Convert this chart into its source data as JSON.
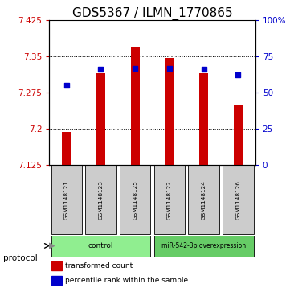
{
  "title": "GDS5367 / ILMN_1770865",
  "samples": [
    "GSM1148121",
    "GSM1148123",
    "GSM1148125",
    "GSM1148122",
    "GSM1148124",
    "GSM1148126"
  ],
  "bar_values": [
    7.193,
    7.315,
    7.368,
    7.347,
    7.315,
    7.248
  ],
  "percentile_values": [
    55,
    66,
    67,
    67,
    66,
    62
  ],
  "ylim_left": [
    7.125,
    7.425
  ],
  "ylim_right": [
    0,
    100
  ],
  "yticks_left": [
    7.125,
    7.2,
    7.275,
    7.35,
    7.425
  ],
  "ytick_labels_left": [
    "7.125",
    "7.2",
    "7.275",
    "7.35",
    "7.425"
  ],
  "yticks_right": [
    0,
    25,
    50,
    75,
    100
  ],
  "ytick_labels_right": [
    "0",
    "25",
    "50",
    "75",
    "100%"
  ],
  "bar_color": "#cc0000",
  "marker_color": "#0000cc",
  "bar_bottom": 7.125,
  "groups": [
    {
      "label": "control",
      "start": 0,
      "end": 3,
      "color": "#90ee90"
    },
    {
      "label": "miR-542-3p overexpression",
      "start": 3,
      "end": 6,
      "color": "#66cc66"
    }
  ],
  "protocol_label": "protocol",
  "legend_bar_label": "transformed count",
  "legend_marker_label": "percentile rank within the sample",
  "title_fontsize": 11,
  "tick_label_fontsize": 7.5,
  "axis_label_color_left": "#cc0000",
  "axis_label_color_right": "#0000cc",
  "sample_box_color": "#cccccc",
  "bar_width": 0.25,
  "fig_width": 3.61,
  "fig_height": 3.63
}
